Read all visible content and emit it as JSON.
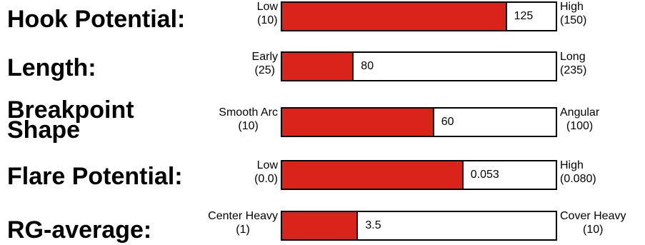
{
  "chart_data": {
    "type": "bar",
    "style": "horizontal-gauge",
    "bar_color": "#d9231b",
    "rows": [
      {
        "title": "Hook Potential:",
        "min_label": "Low",
        "min_value_label": "(10)",
        "max_label": "High",
        "max_value_label": "(150)",
        "min": 10,
        "max": 150,
        "value": 125,
        "value_label": "125"
      },
      {
        "title": "Length:",
        "min_label": "Early",
        "min_value_label": "(25)",
        "max_label": "Long",
        "max_value_label": "(235)",
        "min": 25,
        "max": 235,
        "value": 80,
        "value_label": "80"
      },
      {
        "title": "Breakpoint Shape",
        "min_label": "Smooth Arc",
        "min_value_label": "(10)",
        "max_label": "Angular",
        "max_value_label": "(100)",
        "min": 10,
        "max": 100,
        "value": 60,
        "value_label": "60"
      },
      {
        "title": "Flare Potential:",
        "min_label": "Low",
        "min_value_label": "(0.0)",
        "max_label": "High",
        "max_value_label": "(0.080)",
        "min": 0.0,
        "max": 0.08,
        "value": 0.053,
        "value_label": "0.053"
      },
      {
        "title": "RG-average:",
        "min_label": "Center Heavy",
        "min_value_label": "(1)",
        "max_label": "Cover Heavy",
        "max_value_label": "(10)",
        "min": 1,
        "max": 10,
        "value": 3.5,
        "value_label": "3.5"
      }
    ]
  }
}
